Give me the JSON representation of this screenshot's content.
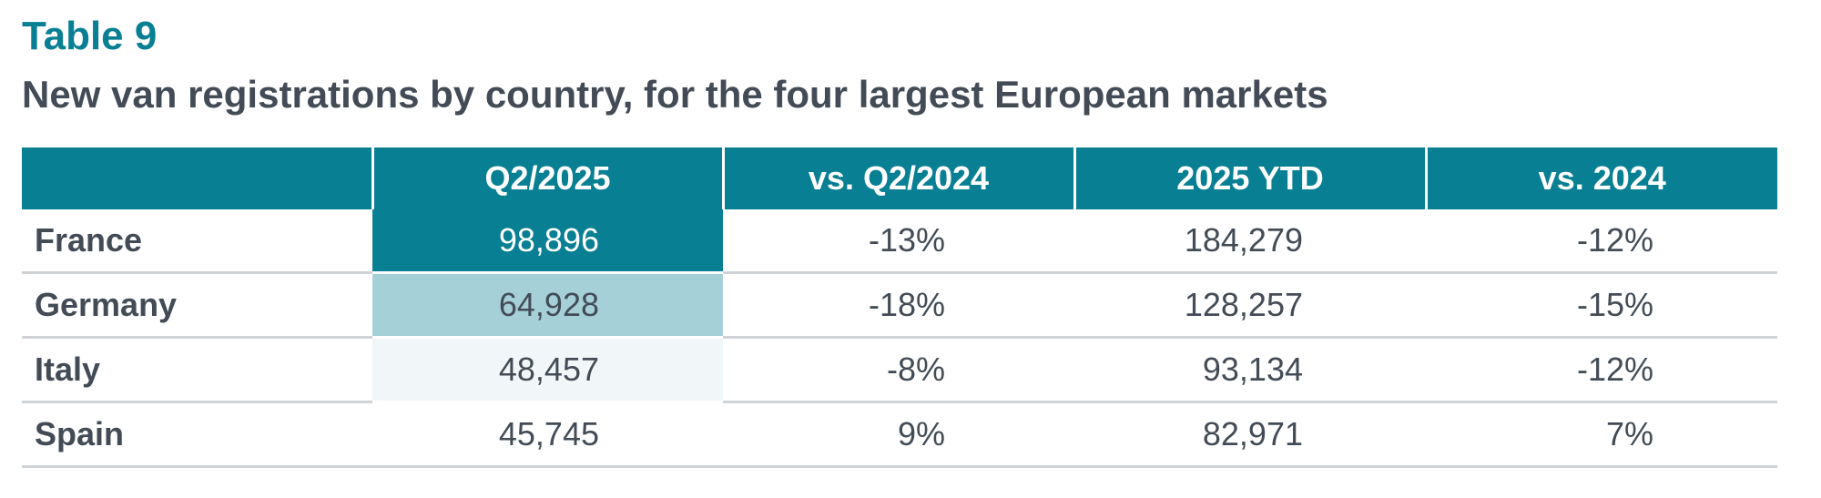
{
  "table_label": "Table 9",
  "title": "New van registrations by country, for the four largest European markets",
  "columns": [
    "",
    "Q2/2025",
    "vs. Q2/2024",
    "2025 YTD",
    "vs. 2024"
  ],
  "rows": [
    {
      "country": "France",
      "q2_2025": "98,896",
      "vs_q2_2024": "-13%",
      "ytd_2025": "184,279",
      "vs_2024": "-12%"
    },
    {
      "country": "Germany",
      "q2_2025": "64,928",
      "vs_q2_2024": "-18%",
      "ytd_2025": "128,257",
      "vs_2024": "-15%"
    },
    {
      "country": "Italy",
      "q2_2025": "48,457",
      "vs_q2_2024": "-8%",
      "ytd_2025": "93,134",
      "vs_2024": "-12%"
    },
    {
      "country": "Spain",
      "q2_2025": "45,745",
      "vs_q2_2024": "9%",
      "ytd_2025": "82,971",
      "vs_2024": "7%"
    }
  ],
  "colors": {
    "accent": "#087f92",
    "text": "#434c56",
    "heat_high": "#087f92",
    "heat_mid": "#a6d0d8",
    "heat_low": "#f1f6f8"
  }
}
